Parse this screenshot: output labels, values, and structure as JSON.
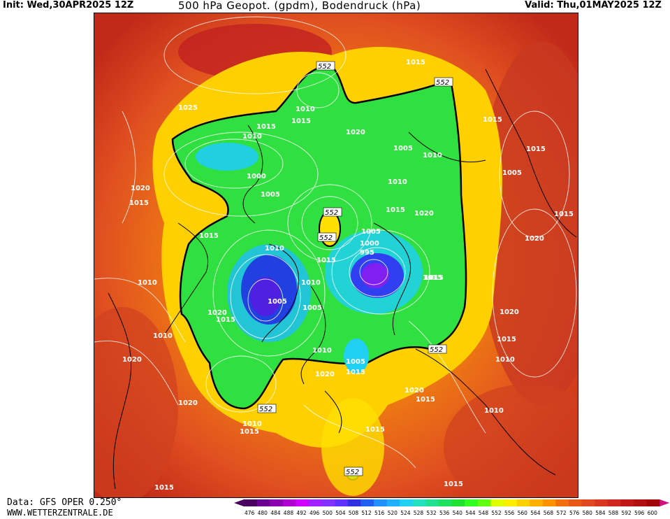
{
  "header": {
    "init": "Init: Wed,30APR2025 12Z",
    "title": "500 hPa Geopot. (gpdm), Bodendruck (hPa)",
    "valid": "Valid: Thu,01MAY2025 12Z"
  },
  "footer": {
    "data_source": "Data: GFS OPER 0.250°",
    "website": "WWW.WETTERZENTRALE.DE"
  },
  "legend": {
    "values": [
      "476",
      "480",
      "484",
      "488",
      "492",
      "496",
      "500",
      "504",
      "508",
      "512",
      "516",
      "520",
      "524",
      "528",
      "532",
      "536",
      "540",
      "544",
      "548",
      "552",
      "556",
      "560",
      "564",
      "568",
      "572",
      "576",
      "580",
      "584",
      "588",
      "592",
      "596",
      "600"
    ],
    "colors": [
      "#4a0060",
      "#6a0090",
      "#8a00b0",
      "#b000d0",
      "#d000ff",
      "#a020ff",
      "#8030ff",
      "#6030ff",
      "#3030e0",
      "#2060f0",
      "#2090ff",
      "#20b0ff",
      "#20d0f0",
      "#20e0c0",
      "#20e090",
      "#20e060",
      "#20e030",
      "#30ff20",
      "#60ff10",
      "#e0ff00",
      "#ffee00",
      "#ffd000",
      "#ffb000",
      "#ff9000",
      "#f07010",
      "#e85818",
      "#e04820",
      "#d83820",
      "#d02820",
      "#c01818",
      "#b01010",
      "#a00808"
    ],
    "arrow_left_color": "#4a0060",
    "arrow_right_color": "#d01080"
  },
  "map": {
    "contour_552": "552",
    "pressure_labels": [
      {
        "text": "1025"
      },
      {
        "text": "1015"
      },
      {
        "text": "1010"
      },
      {
        "text": "1015"
      },
      {
        "text": "1010"
      },
      {
        "text": "1020"
      },
      {
        "text": "1005"
      },
      {
        "text": "1010"
      },
      {
        "text": "1000"
      },
      {
        "text": "1005"
      },
      {
        "text": "1020"
      },
      {
        "text": "1015"
      },
      {
        "text": "1010"
      },
      {
        "text": "1015"
      },
      {
        "text": "1015"
      },
      {
        "text": "1020"
      },
      {
        "text": "1005"
      },
      {
        "text": "1000"
      },
      {
        "text": "995"
      },
      {
        "text": "1010"
      },
      {
        "text": "1015"
      },
      {
        "text": "1015"
      },
      {
        "text": "1010"
      },
      {
        "text": "1005"
      },
      {
        "text": "1005"
      },
      {
        "text": "1020"
      },
      {
        "text": "1015"
      },
      {
        "text": "1010"
      },
      {
        "text": "1010"
      },
      {
        "text": "1020"
      },
      {
        "text": "1005"
      },
      {
        "text": "1015"
      },
      {
        "text": "1020"
      },
      {
        "text": "1020"
      },
      {
        "text": "1010"
      },
      {
        "text": "1015"
      },
      {
        "text": "1010"
      },
      {
        "text": "1015"
      },
      {
        "text": "1015"
      },
      {
        "text": "1015"
      },
      {
        "text": "1015"
      },
      {
        "text": "1005"
      },
      {
        "text": "1015"
      },
      {
        "text": "1020"
      },
      {
        "text": "1015"
      },
      {
        "text": "1010"
      },
      {
        "text": "1020"
      },
      {
        "text": "1020"
      },
      {
        "text": "1010"
      },
      {
        "text": "1015"
      },
      {
        "text": "1015"
      },
      {
        "text": "1015"
      },
      {
        "text": "1015"
      }
    ]
  }
}
